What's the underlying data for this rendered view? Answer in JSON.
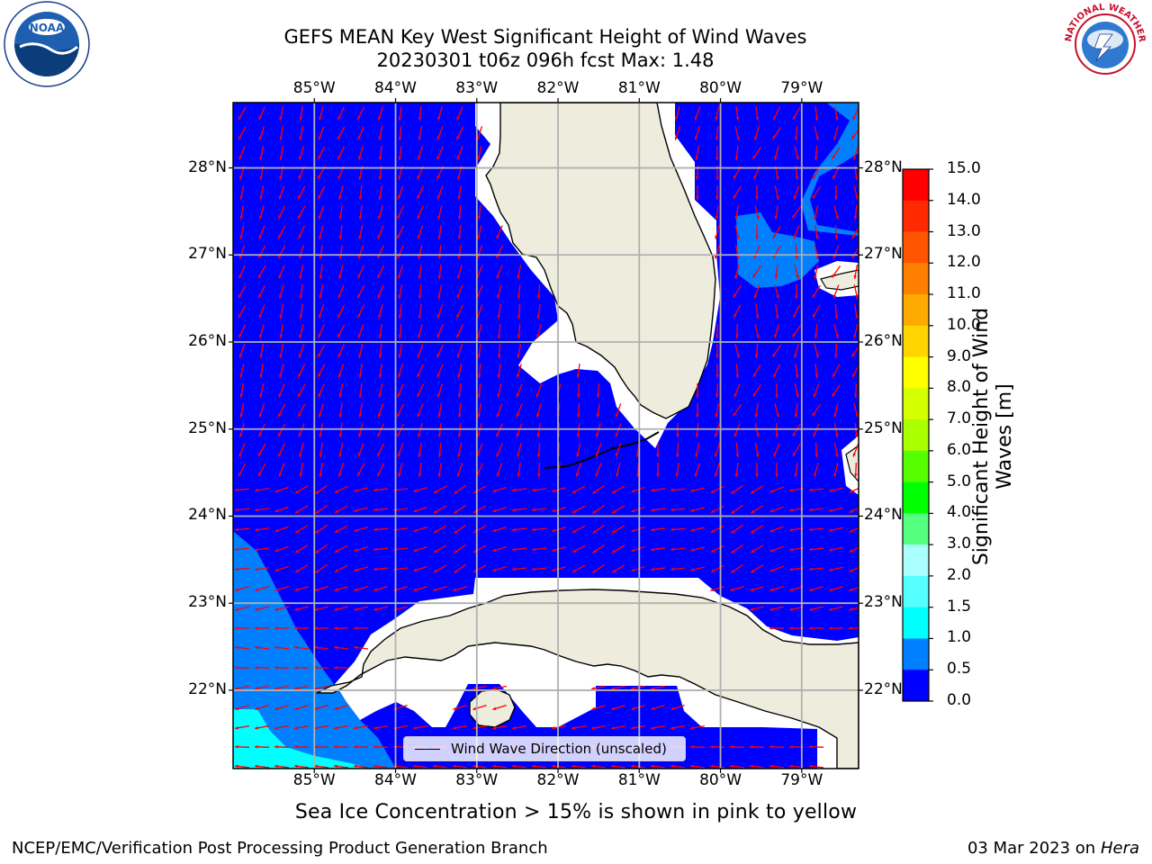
{
  "title": {
    "line1": "GEFS MEAN Key West Significant Height of Wind Waves",
    "line2": "20230301 t06z 096h fcst   Max: 1.48"
  },
  "map": {
    "lon_range": [
      -86.0,
      -78.3
    ],
    "lat_range": [
      21.1,
      28.75
    ],
    "lon_ticks": [
      "85°W",
      "84°W",
      "83°W",
      "82°W",
      "81°W",
      "80°W",
      "79°W"
    ],
    "lat_ticks": [
      "28°N",
      "27°N",
      "26°N",
      "25°N",
      "24°N",
      "23°N",
      "22°N"
    ],
    "ocean_color": "#0000ff",
    "land_color": "#eeeddd",
    "arrow_color": "#ff0000",
    "grid_color": "#b0b0b0"
  },
  "legend": {
    "label": "Wind Wave Direction (unscaled)"
  },
  "colorbar": {
    "label": "Significant Height of Wind Waves [m]",
    "levels": [
      "15.0",
      "14.0",
      "13.0",
      "12.0",
      "11.0",
      "10.0",
      "9.0",
      "8.0",
      "7.0",
      "6.0",
      "5.0",
      "4.0",
      "3.0",
      "2.0",
      "1.5",
      "1.0",
      "0.5",
      "0.0"
    ],
    "colors": [
      "#ff0000",
      "#ff2a00",
      "#ff5500",
      "#ff8000",
      "#ffaa00",
      "#ffd400",
      "#ffff00",
      "#d4ff00",
      "#aaff00",
      "#55ff00",
      "#00ff00",
      "#55ff80",
      "#aaffff",
      "#55ffff",
      "#00ffff",
      "#0080ff",
      "#0000ff"
    ]
  },
  "note": "Sea Ice Concentration > 15% is shown in pink to yellow",
  "footer": {
    "left": "NCEP/EMC/Verification Post Processing Product Generation Branch",
    "date": "03 Mar 2023 on",
    "host": "Hera"
  },
  "logos": {
    "left": "NOAA",
    "right": "NATIONAL WEATHER SERVICE"
  }
}
